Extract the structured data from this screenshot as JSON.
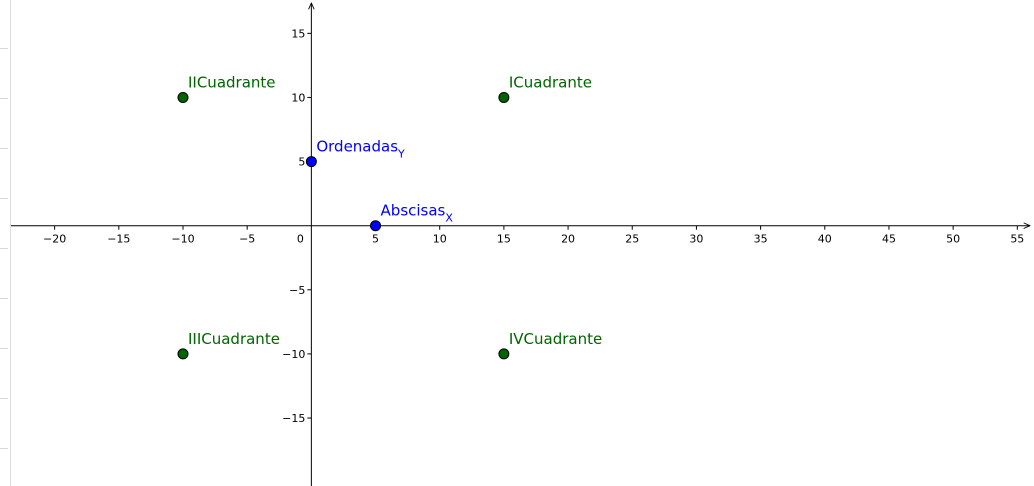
{
  "graphics": {
    "x_axis": {
      "min": -23.4,
      "max": 56.3,
      "ticks": [
        -20,
        -15,
        -10,
        -5,
        0,
        5,
        10,
        15,
        20,
        25,
        30,
        35,
        40,
        45,
        50,
        55
      ]
    },
    "y_axis": {
      "min": -20.3,
      "max": 17.6,
      "ticks": [
        -15,
        -10,
        -5,
        5,
        10,
        15
      ]
    },
    "origin_label": "0",
    "axis_color": "#000000",
    "points": [
      {
        "id": "icuadrante",
        "label": "ICuadrante",
        "x": 15,
        "y": 10,
        "color": "#006400"
      },
      {
        "id": "iicuadrante",
        "label": "IICuadrante",
        "x": -10,
        "y": 10,
        "color": "#006400"
      },
      {
        "id": "iiicuadrante",
        "label": "IIICuadrante",
        "x": -10,
        "y": -10,
        "color": "#006400"
      },
      {
        "id": "ivcuadrante",
        "label": "IVCuadrante",
        "x": 15,
        "y": -10,
        "color": "#006400"
      },
      {
        "id": "ordenadas",
        "label": "Ordenadas",
        "subscript": "Y",
        "x": 0,
        "y": 5,
        "color": "#0000ff"
      },
      {
        "id": "abscisas",
        "label": "Abscisas",
        "subscript": "X",
        "x": 5,
        "y": 0,
        "color": "#0000ff"
      }
    ]
  }
}
